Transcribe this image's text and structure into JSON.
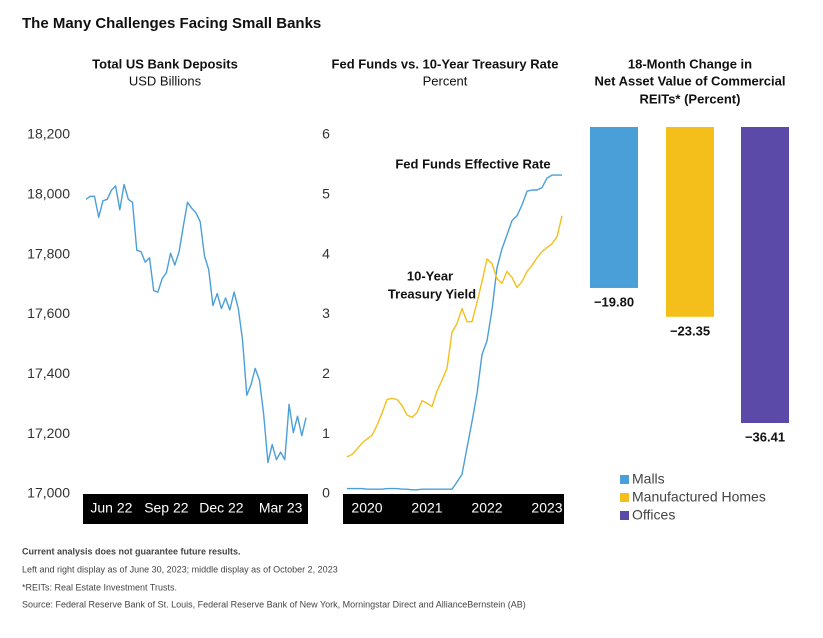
{
  "title": "The Many Challenges Facing Small Banks",
  "notes": [
    "Current analysis does not guarantee future results.",
    "Left and right display as of June 30, 2023; middle display as of October 2, 2023",
    "*REITs: Real Estate Investment Trusts.",
    "Source: Federal Reserve Bank of St. Louis, Federal Reserve Bank of New York, Morningstar Direct and AllianceBernstein (AB)"
  ],
  "chart_data": [
    {
      "type": "line",
      "title": "Total US Bank Deposits",
      "subtitle": "USD Billions",
      "categories": [
        null,
        null,
        null,
        null,
        null,
        null,
        "Jun 22",
        null,
        null,
        null,
        null,
        null,
        null,
        null,
        null,
        null,
        null,
        null,
        null,
        "Sep 22",
        null,
        null,
        null,
        null,
        null,
        null,
        null,
        null,
        null,
        null,
        null,
        null,
        "Dec 22",
        null,
        null,
        null,
        null,
        null,
        null,
        null,
        null,
        null,
        null,
        null,
        null,
        null,
        "Mar 23",
        null,
        null,
        null,
        null,
        null,
        null
      ],
      "values": [
        17985,
        17995,
        17995,
        17925,
        17980,
        17985,
        18015,
        18030,
        17950,
        18035,
        17985,
        17975,
        17815,
        17810,
        17775,
        17790,
        17680,
        17675,
        17720,
        17740,
        17805,
        17765,
        17810,
        17895,
        17975,
        17955,
        17940,
        17910,
        17795,
        17750,
        17630,
        17670,
        17620,
        17655,
        17615,
        17675,
        17620,
        17515,
        17330,
        17365,
        17420,
        17380,
        17265,
        17105,
        17165,
        17115,
        17140,
        17115,
        17300,
        17205,
        17260,
        17195,
        17255
      ],
      "color": "#4a9fd9",
      "ylim": [
        17000,
        18200
      ],
      "yticks": [
        {
          "value": 17000,
          "label": "17,000"
        },
        {
          "value": 17200,
          "label": "17,200"
        },
        {
          "value": 17400,
          "label": "17,400"
        },
        {
          "value": 17600,
          "label": "17,600"
        },
        {
          "value": 17800,
          "label": "17,800"
        },
        {
          "value": 18000,
          "label": "18,000"
        },
        {
          "value": 18200,
          "label": "18,200"
        }
      ],
      "grid": false
    },
    {
      "type": "line",
      "title": "Fed Funds vs. 10-Year Treasury Rate",
      "subtitle": "Percent",
      "categories": [
        null,
        null,
        null,
        null,
        "2020",
        null,
        null,
        null,
        null,
        null,
        null,
        null,
        null,
        null,
        null,
        null,
        "2021",
        null,
        null,
        null,
        null,
        null,
        null,
        null,
        null,
        null,
        null,
        null,
        "2022",
        null,
        null,
        null,
        null,
        null,
        null,
        null,
        null,
        null,
        null,
        null,
        "2023",
        null,
        null,
        null
      ],
      "series": [
        {
          "name": "Fed Funds Effective Rate",
          "color": "#4a9fd9",
          "values": [
            0.09,
            0.09,
            0.09,
            0.09,
            0.08,
            0.08,
            0.08,
            0.08,
            0.09,
            0.09,
            0.09,
            0.08,
            0.08,
            0.07,
            0.07,
            0.08,
            0.08,
            0.08,
            0.08,
            0.08,
            0.08,
            0.08,
            0.2,
            0.33,
            0.77,
            1.21,
            1.68,
            2.33,
            2.56,
            3.08,
            3.78,
            4.1,
            4.33,
            4.57,
            4.65,
            4.83,
            5.06,
            5.08,
            5.08,
            5.12,
            5.28,
            5.33,
            5.33,
            5.33
          ]
        },
        {
          "name": "10-Year Treasury Yield",
          "color": "#f5bf1b",
          "values": [
            0.62,
            0.66,
            0.75,
            0.85,
            0.92,
            0.98,
            1.15,
            1.35,
            1.58,
            1.6,
            1.58,
            1.48,
            1.32,
            1.28,
            1.36,
            1.56,
            1.52,
            1.46,
            1.72,
            1.9,
            2.1,
            2.7,
            2.85,
            3.1,
            2.88,
            2.88,
            3.2,
            3.55,
            3.93,
            3.85,
            3.6,
            3.52,
            3.72,
            3.62,
            3.45,
            3.55,
            3.72,
            3.82,
            3.95,
            4.05,
            4.12,
            4.18,
            4.3,
            4.65
          ]
        }
      ],
      "annotations": [
        "Fed Funds Effective Rate",
        "10-Year",
        "Treasury Yield"
      ],
      "ylim": [
        0,
        6
      ],
      "yticks": [
        0,
        1,
        2,
        3,
        4,
        5,
        6
      ],
      "grid": false
    },
    {
      "type": "bar",
      "title": [
        "18-Month Change in",
        "Net Asset Value of Commercial",
        "REITs* (Percent)"
      ],
      "categories": [
        "Malls",
        "Manufactured Homes",
        "Offices"
      ],
      "values": [
        -19.8,
        -23.35,
        -36.41
      ],
      "value_labels": [
        "−19.80",
        "−23.35",
        "−36.41"
      ],
      "colors": [
        "#4a9fd9",
        "#f5bf1b",
        "#5b4aa8"
      ]
    }
  ]
}
